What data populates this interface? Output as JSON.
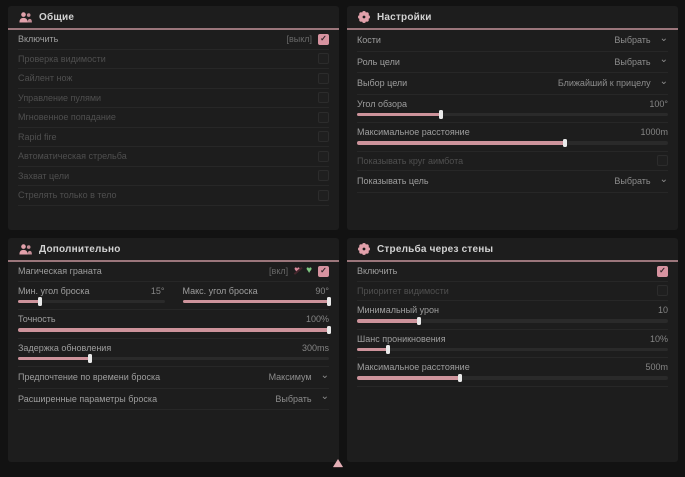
{
  "colors": {
    "accent_pink": "#d793a0",
    "header_line": "#9b767b",
    "icon_pink": "#e2a1ab",
    "heart_green": "#7fc882",
    "panel_bg": "#1d1d1d",
    "page_bg": "#121212"
  },
  "panels": {
    "general": {
      "title": "Общие",
      "icon": "users-icon",
      "rows": [
        {
          "label": "Включить",
          "state_text": "[выкл]",
          "checked": true,
          "dim": false
        },
        {
          "label": "Проверка видимости",
          "checked": false,
          "dim": true
        },
        {
          "label": "Сайлент нож",
          "checked": false,
          "dim": true
        },
        {
          "label": "Управление пулями",
          "checked": false,
          "dim": true
        },
        {
          "label": "Мгновенное попадание",
          "checked": false,
          "dim": true
        },
        {
          "label": "Rapid fire",
          "checked": false,
          "dim": true
        },
        {
          "label": "Автоматическая стрельба",
          "checked": false,
          "dim": true
        },
        {
          "label": "Захват цели",
          "checked": false,
          "dim": true
        },
        {
          "label": "Стрелять только в тело",
          "checked": false,
          "dim": true
        }
      ]
    },
    "settings": {
      "title": "Настройки",
      "icon": "gear-icon",
      "rows": [
        {
          "label": "Кости",
          "type": "dropdown",
          "value": "Выбрать"
        },
        {
          "label": "Роль цели",
          "type": "dropdown",
          "value": "Выбрать"
        },
        {
          "label": "Выбор цели",
          "type": "dropdown",
          "value": "Ближайший к прицелу"
        },
        {
          "label": "Угол обзора",
          "type": "slider",
          "value": "100°",
          "percent": 27
        },
        {
          "label": "Максимальное расстояние",
          "type": "slider",
          "value": "1000m",
          "percent": 67
        },
        {
          "label": "Показывать круг аимбота",
          "type": "checkbox",
          "checked": false,
          "dim": true
        },
        {
          "label": "Показывать цель",
          "type": "dropdown",
          "value": "Выбрать"
        }
      ]
    },
    "additional": {
      "title": "Дополнительно",
      "icon": "users-icon",
      "rows": [
        {
          "label": "Магическая граната",
          "state_text": "[вкл]",
          "checked": true,
          "icons": [
            "broken-heart-icon",
            "green-heart-icon"
          ]
        },
        {
          "label": "Мин. угол броска",
          "type": "slider",
          "value": "15°",
          "percent": 15
        },
        {
          "label": "Макс. угол броска",
          "type": "slider",
          "value": "90°",
          "percent": 100
        },
        {
          "label": "Точность",
          "type": "slider",
          "value": "100%",
          "percent": 100
        },
        {
          "label": "Задержка обновления",
          "type": "slider",
          "value": "300ms",
          "percent": 23
        },
        {
          "label": "Предпочтение по времени броска",
          "type": "dropdown",
          "value": "Максимум"
        },
        {
          "label": "Расширенные параметры броска",
          "type": "dropdown",
          "value": "Выбрать"
        }
      ]
    },
    "wallbang": {
      "title": "Стрельба через стены",
      "icon": "gear-icon",
      "rows": [
        {
          "label": "Включить",
          "checked": true,
          "dim": false
        },
        {
          "label": "Приоритет видимости",
          "checked": false,
          "dim": true
        },
        {
          "label": "Минимальный урон",
          "type": "slider",
          "value": "10",
          "percent": 20
        },
        {
          "label": "Шанс проникновения",
          "type": "slider",
          "value": "10%",
          "percent": 10
        },
        {
          "label": "Максимальное расстояние",
          "type": "slider",
          "value": "500m",
          "percent": 33
        }
      ]
    }
  }
}
